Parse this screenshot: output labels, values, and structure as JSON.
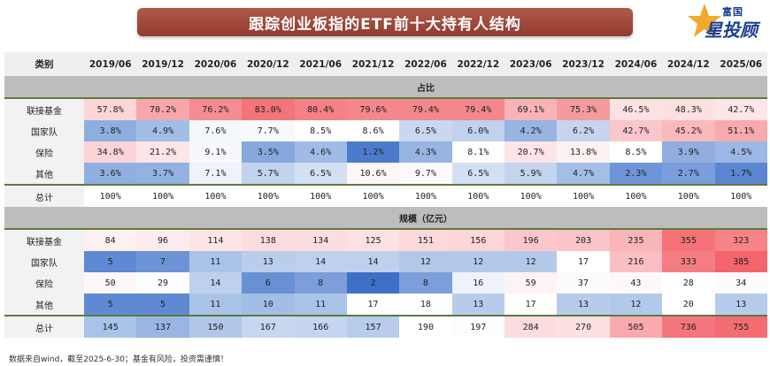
{
  "title": "跟踪创业板指的ETF前十大持有人结构",
  "logo": {
    "top": "富国",
    "main": "星投顾"
  },
  "header": {
    "category_label": "类别",
    "periods": [
      "2019/06",
      "2019/12",
      "2020/06",
      "2020/12",
      "2021/06",
      "2021/12",
      "2022/06",
      "2022/12",
      "2023/06",
      "2023/12",
      "2024/06",
      "2024/12",
      "2025/06"
    ]
  },
  "share_section": {
    "title": "占比",
    "rows": [
      {
        "label": "联接基金",
        "values": [
          "57.8%",
          "70.2%",
          "76.2%",
          "83.0%",
          "80.4%",
          "79.6%",
          "79.4%",
          "79.4%",
          "69.1%",
          "75.3%",
          "46.5%",
          "48.3%",
          "42.7%"
        ],
        "colors": [
          "#fcd5d8",
          "#f7a7ab",
          "#f58c91",
          "#f37479",
          "#f48187",
          "#f4878c",
          "#f4878c",
          "#f4878c",
          "#f8b3b7",
          "#f59b9f",
          "#fde2e4",
          "#fde0e2",
          "#fde6e8"
        ]
      },
      {
        "label": "国家队",
        "values": [
          "3.8%",
          "4.9%",
          "7.6%",
          "7.7%",
          "8.5%",
          "8.6%",
          "6.5%",
          "6.0%",
          "4.2%",
          "6.2%",
          "42.7%",
          "45.2%",
          "51.1%"
        ],
        "colors": [
          "#8eaee0",
          "#a3bee6",
          "#f4f7fc",
          "#f7f9fd",
          "#ffffff",
          "#ffffff",
          "#c9d8f0",
          "#c1d2ee",
          "#97b4e2",
          "#c5d5ef",
          "#fbc6ca",
          "#fab9bd",
          "#f8aaae"
        ]
      },
      {
        "label": "保险",
        "values": [
          "34.8%",
          "21.2%",
          "9.1%",
          "3.5%",
          "4.6%",
          "1.2%",
          "4.3%",
          "8.1%",
          "20.7%",
          "13.8%",
          "8.5%",
          "3.9%",
          "4.5%"
        ],
        "colors": [
          "#fcd3d6",
          "#fde4e6",
          "#f6f8fd",
          "#86a8de",
          "#a0bbe5",
          "#4b7bcc",
          "#97b4e2",
          "#ffffff",
          "#fde5e7",
          "#fdf1f2",
          "#ffffff",
          "#90afe0",
          "#9cb8e4"
        ]
      },
      {
        "label": "其他",
        "values": [
          "3.6%",
          "3.7%",
          "7.1%",
          "5.7%",
          "6.5%",
          "10.6%",
          "9.7%",
          "6.5%",
          "5.9%",
          "4.7%",
          "2.3%",
          "2.7%",
          "1.7%"
        ],
        "colors": [
          "#90afe0",
          "#93b1e1",
          "#eef3fb",
          "#c2d3ee",
          "#d3e0f3",
          "#fff6f7",
          "#fdfaff",
          "#d3e0f3",
          "#c4d4ef",
          "#a4bfe7",
          "#6f95d8",
          "#7a9ddb",
          "#5a86d2"
        ]
      }
    ],
    "total": {
      "label": "总计",
      "values": [
        "100%",
        "100%",
        "100%",
        "100%",
        "100%",
        "100%",
        "100%",
        "100%",
        "100%",
        "100%",
        "100%",
        "100%",
        "100%"
      ]
    }
  },
  "size_section": {
    "title": "规模（亿元）",
    "rows": [
      {
        "label": "联接基金",
        "values": [
          "84",
          "96",
          "114",
          "138",
          "134",
          "125",
          "151",
          "156",
          "196",
          "203",
          "235",
          "355",
          "323"
        ],
        "colors": [
          "#fdf0f1",
          "#fdebed",
          "#fde5e7",
          "#fcdcdf",
          "#fcdee0",
          "#fde1e3",
          "#fcd8db",
          "#fcd6d9",
          "#fbc7cb",
          "#fbc4c8",
          "#fab6bb",
          "#f57277",
          "#f78389"
        ]
      },
      {
        "label": "国家队",
        "values": [
          "5",
          "7",
          "11",
          "13",
          "14",
          "14",
          "12",
          "12",
          "12",
          "17",
          "216",
          "333",
          "385"
        ],
        "colors": [
          "#5f8ad3",
          "#6d93d7",
          "#aac3e8",
          "#b9cdec",
          "#bdd0ed",
          "#bdd0ed",
          "#b3c9ea",
          "#b3c9ea",
          "#b3c9ea",
          "#ffffff",
          "#fbbec2",
          "#f57d82",
          "#f3656b"
        ]
      },
      {
        "label": "保险",
        "values": [
          "50",
          "29",
          "14",
          "6",
          "8",
          "2",
          "8",
          "16",
          "59",
          "37",
          "43",
          "28",
          "34"
        ],
        "colors": [
          "#fdf7f8",
          "#fdfcfe",
          "#bdd0ed",
          "#6890d5",
          "#7c9edb",
          "#3e70c7",
          "#7c9edb",
          "#eef3fb",
          "#fdf3f4",
          "#fdfbfc",
          "#fdf9fa",
          "#ffffff",
          "#fdfbfc"
        ]
      },
      {
        "label": "其他",
        "values": [
          "5",
          "5",
          "11",
          "10",
          "11",
          "17",
          "18",
          "13",
          "17",
          "13",
          "12",
          "20",
          "13"
        ],
        "colors": [
          "#5f8ad3",
          "#5f8ad3",
          "#aac3e8",
          "#a3bee6",
          "#aac3e8",
          "#ffffff",
          "#ffffff",
          "#b7ccec",
          "#ffffff",
          "#b7ccec",
          "#b3c9ea",
          "#ffffff",
          "#b7ccec"
        ]
      }
    ],
    "total": {
      "label": "总计",
      "values": [
        "145",
        "137",
        "150",
        "167",
        "166",
        "157",
        "190",
        "197",
        "284",
        "270",
        "505",
        "736",
        "755"
      ],
      "colors": [
        "#a9c2e8",
        "#99b6e3",
        "#b0c7ea",
        "#c7d7ef",
        "#c5d5ef",
        "#b8ccec",
        "#ffffff",
        "#fdfcfe",
        "#fcdcdf",
        "#fde0e2",
        "#f9aaaf",
        "#f4767c",
        "#f36c72"
      ]
    }
  },
  "source_note": "数据来自wind，截至2025-6-30；基金有风险，投资需谨慎！"
}
